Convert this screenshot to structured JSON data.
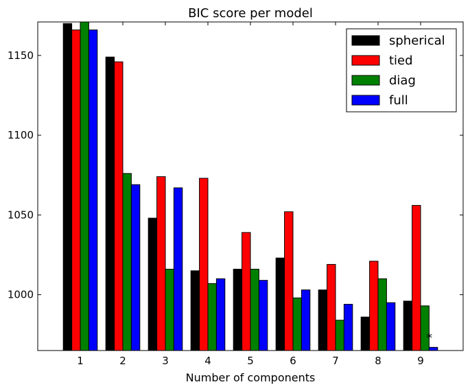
{
  "chart_data": {
    "type": "bar",
    "title": "BIC score per model",
    "xlabel": "Number of components",
    "ylabel": "",
    "categories": [
      "1",
      "2",
      "3",
      "4",
      "5",
      "6",
      "7",
      "8",
      "9"
    ],
    "ylim": [
      965,
      1171
    ],
    "yticks": [
      1000,
      1050,
      1100,
      1150
    ],
    "ytick_labels": [
      "1000",
      "1050",
      "1100",
      "1150"
    ],
    "series": [
      {
        "name": "spherical",
        "color": "#000000",
        "values": [
          1170,
          1149,
          1048,
          1015,
          1016,
          1023,
          1003,
          986,
          996
        ]
      },
      {
        "name": "tied",
        "color": "#ff0000",
        "values": [
          1166,
          1146,
          1074,
          1073,
          1039,
          1052,
          1019,
          1021,
          1056
        ]
      },
      {
        "name": "diag",
        "color": "#008000",
        "values": [
          1171,
          1076,
          1016,
          1007,
          1016,
          998,
          984,
          1010,
          993
        ]
      },
      {
        "name": "full",
        "color": "#0000ff",
        "values": [
          1166,
          1069,
          1067,
          1010,
          1009,
          1003,
          994,
          995,
          967
        ]
      }
    ],
    "annotation": {
      "text": "*",
      "category": "9"
    },
    "legend_position": "top-right",
    "grid": false
  }
}
